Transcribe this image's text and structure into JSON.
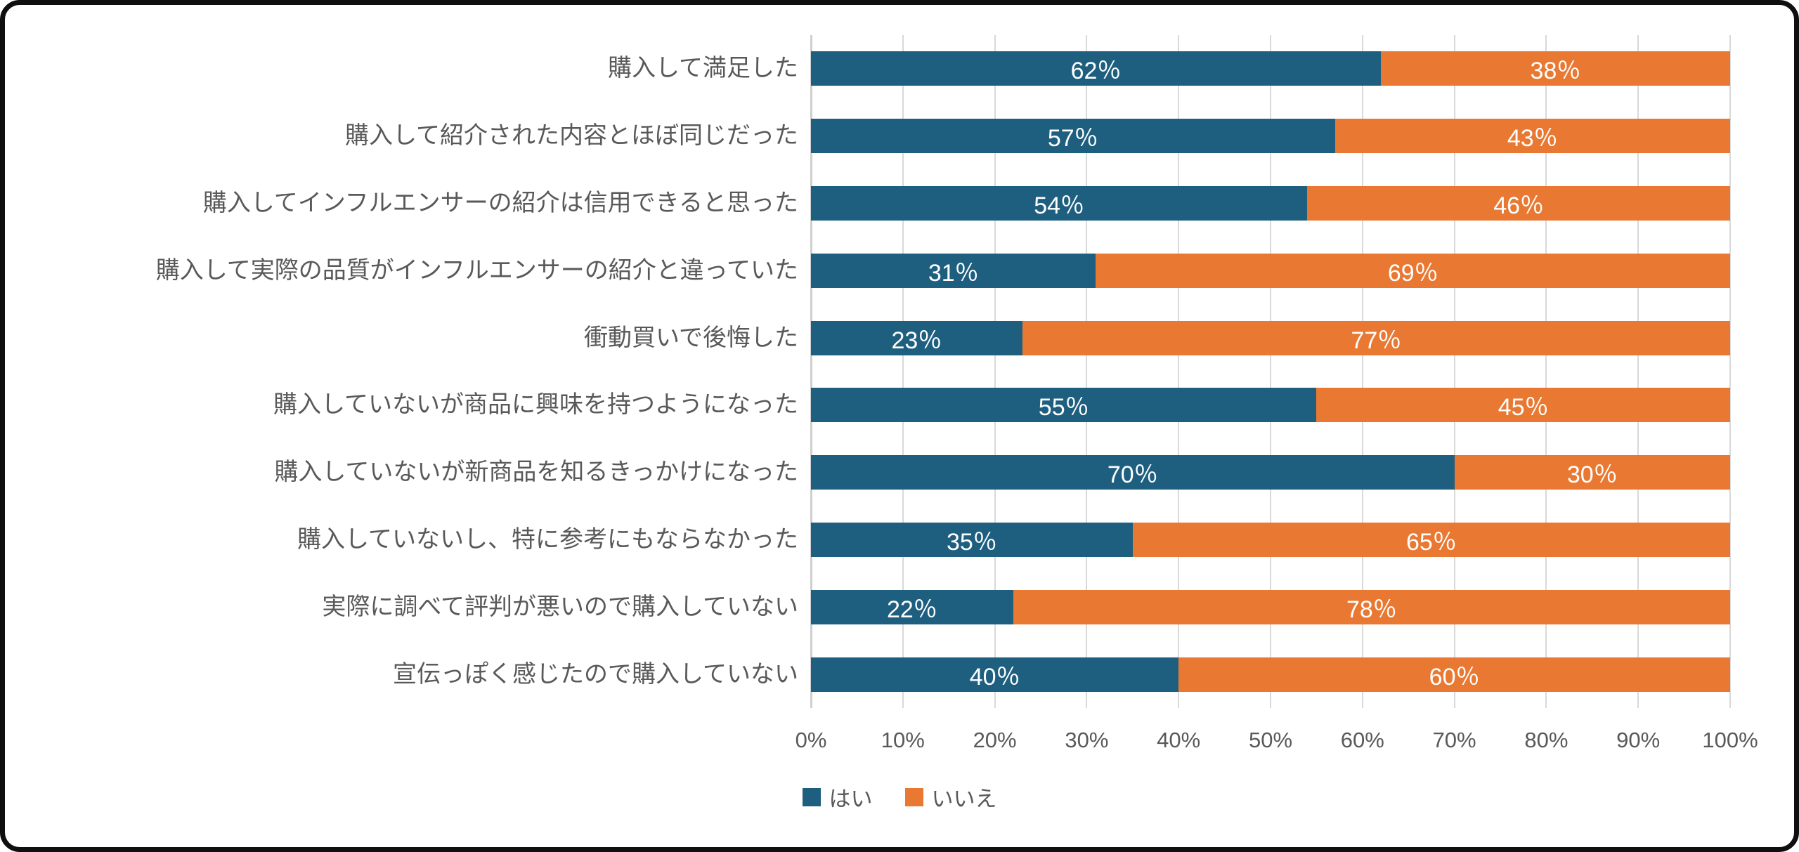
{
  "chart_data": {
    "type": "bar",
    "orientation": "horizontal_stacked",
    "title": "",
    "xlabel": "",
    "ylabel": "",
    "categories": [
      "購入して満足した",
      "購入して紹介された内容とほぼ同じだった",
      "購入してインフルエンサーの紹介は信用できると思った",
      "購入して実際の品質がインフルエンサーの紹介と違っていた",
      "衝動買いで後悔した",
      "購入していないが商品に興味を持つようになった",
      "購入していないが新商品を知るきっかけになった",
      "購入していないし、特に参考にもならなかった",
      "実際に調べて評判が悪いので購入していない",
      "宣伝っぽく感じたので購入していない"
    ],
    "series": [
      {
        "name": "はい",
        "color": "#1E5F80",
        "values": [
          62,
          57,
          54,
          31,
          23,
          55,
          70,
          35,
          22,
          40
        ]
      },
      {
        "name": "いいえ",
        "color": "#E97932",
        "values": [
          38,
          43,
          46,
          69,
          77,
          45,
          30,
          65,
          78,
          60
        ]
      }
    ],
    "value_label_suffix": "％",
    "x_axis": {
      "min": 0,
      "max": 100,
      "tick_step": 10,
      "tick_labels": [
        "0%",
        "10%",
        "20%",
        "30%",
        "40%",
        "50%",
        "60%",
        "70%",
        "80%",
        "90%",
        "100%"
      ]
    },
    "legend": {
      "position": "bottom-center",
      "entries": [
        "はい",
        "いいえ"
      ]
    },
    "grid": true
  },
  "colors": {
    "series_yes": "#1E5F80",
    "series_no": "#E97932",
    "gridline": "#D9D9D9",
    "axis_text": "#595959",
    "category_text": "#595959",
    "value_text": "#FFFFFF",
    "frame_border": "#0F0F0F",
    "background": "#FFFFFF"
  }
}
